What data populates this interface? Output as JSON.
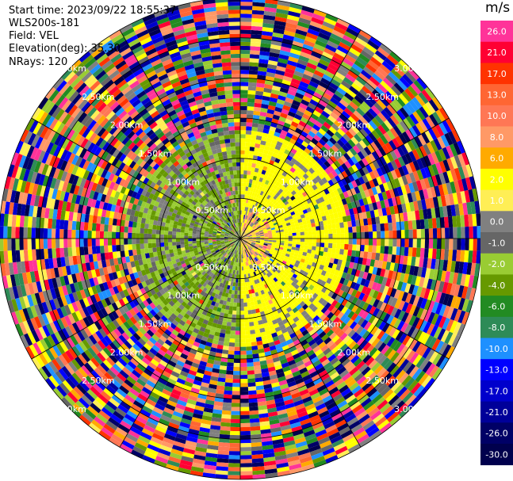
{
  "header": {
    "start_time": "Start time: 2023/09/22 18:55:37",
    "instrument": "WLS200s-181",
    "field": "Field: VEL",
    "elevation": "Elevation(deg): 35.30",
    "nrays": "NRays: 120"
  },
  "colorbar": {
    "unit": "m/s",
    "bins": [
      {
        "label": "26.0",
        "color": "#ff3399"
      },
      {
        "label": "21.0",
        "color": "#ff0033"
      },
      {
        "label": "17.0",
        "color": "#ff3300"
      },
      {
        "label": "13.0",
        "color": "#ff6633"
      },
      {
        "label": "10.0",
        "color": "#ff7755"
      },
      {
        "label": "8.0",
        "color": "#ff9966"
      },
      {
        "label": "6.0",
        "color": "#ffaa00"
      },
      {
        "label": "2.0",
        "color": "#ffff00"
      },
      {
        "label": "1.0",
        "color": "#ffee55"
      },
      {
        "label": "0.0",
        "color": "#808080"
      },
      {
        "label": "-1.0",
        "color": "#666666"
      },
      {
        "label": "-2.0",
        "color": "#99cc33"
      },
      {
        "label": "-4.0",
        "color": "#669900"
      },
      {
        "label": "-6.0",
        "color": "#228b22"
      },
      {
        "label": "-8.0",
        "color": "#2e8b57"
      },
      {
        "label": "-10.0",
        "color": "#1e90ff"
      },
      {
        "label": "-13.0",
        "color": "#0000ff"
      },
      {
        "label": "-17.0",
        "color": "#0000cc"
      },
      {
        "label": "-21.0",
        "color": "#000099"
      },
      {
        "label": "-26.0",
        "color": "#000066"
      },
      {
        "label": "-30.0",
        "color": "#00004d"
      }
    ]
  },
  "chart_data": {
    "type": "heatmap",
    "projection": "polar-ppi",
    "field": "VEL",
    "units": "m/s",
    "nrays": 120,
    "range_rings_km": [
      0.5,
      1.0,
      1.5,
      2.0,
      2.5,
      3.0
    ],
    "range_ring_labels": [
      "0.50km",
      "1.00km",
      "1.50km",
      "2.00km",
      "2.50km",
      "3.00km"
    ],
    "spoke_angles_deg": [
      0,
      30,
      60,
      90,
      120,
      150,
      180,
      210,
      240,
      270,
      300,
      330
    ],
    "max_range_km": 3.0,
    "pattern": {
      "inner_region_max_km": 1.4,
      "west_half_velocity_ms": -3.0,
      "east_half_velocity_ms": 2.0,
      "core_velocity_ms": 8.0,
      "outer_region": "noise (all bins)"
    }
  }
}
